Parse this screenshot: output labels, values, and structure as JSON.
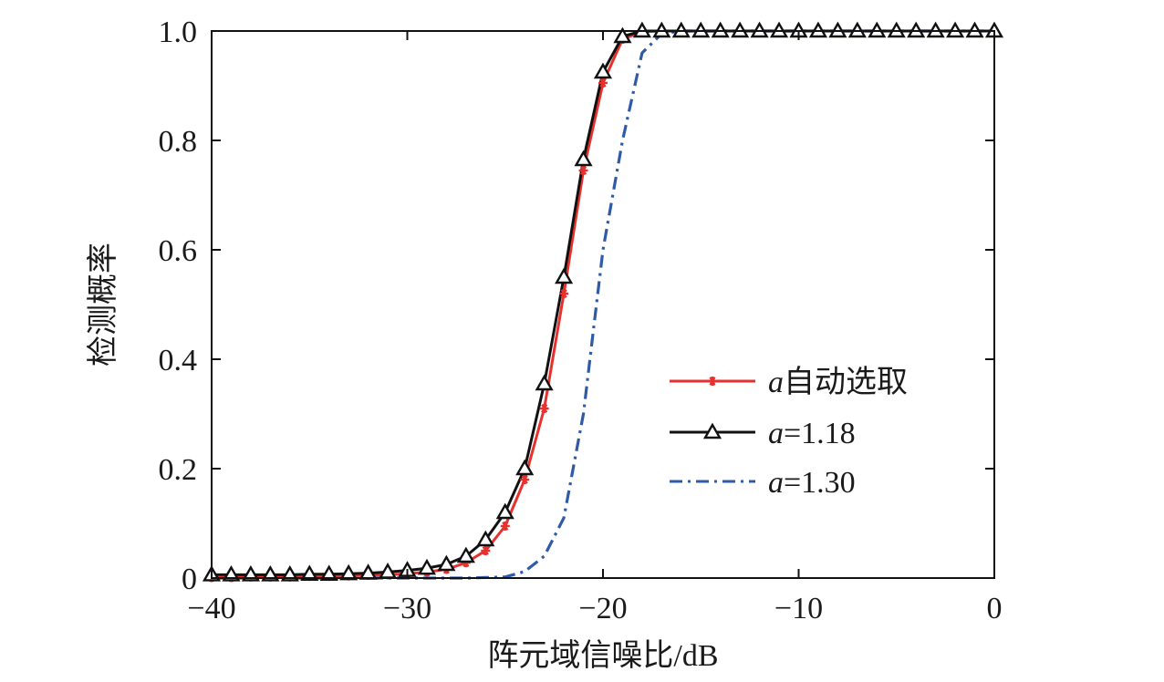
{
  "chart_data": {
    "type": "line",
    "xlabel": "阵元域信噪比/dB",
    "ylabel": "检测概率",
    "xlim": [
      -40,
      0
    ],
    "ylim": [
      0,
      1
    ],
    "xticks": [
      -40,
      -30,
      -20,
      -10,
      0
    ],
    "xtick_labels": [
      "−40",
      "−30",
      "−20",
      "−10",
      "0"
    ],
    "yticks": [
      0,
      0.2,
      0.4,
      0.6,
      0.8,
      1.0
    ],
    "ytick_labels": [
      "0",
      "0.2",
      "0.4",
      "0.6",
      "0.8",
      "1.0"
    ],
    "grid": false,
    "legend_position": "center-right",
    "series": [
      {
        "name_symbol": "a",
        "name_text": "自动选取",
        "color": "#e8312e",
        "line_style": "solid",
        "marker": "asterisk",
        "x": [
          -40,
          -39,
          -38,
          -37,
          -36,
          -35,
          -34,
          -33,
          -32,
          -31,
          -30,
          -29,
          -28,
          -27,
          -26,
          -25,
          -24,
          -23,
          -22,
          -21,
          -20,
          -19,
          -18,
          -17,
          -16,
          -15,
          -14,
          -13,
          -12,
          -11,
          -10,
          -9,
          -8,
          -7,
          -6,
          -5,
          -4,
          -3,
          -2,
          -1,
          0
        ],
        "y": [
          0.001,
          0.001,
          0.002,
          0.002,
          0.002,
          0.003,
          0.003,
          0.004,
          0.005,
          0.006,
          0.008,
          0.011,
          0.016,
          0.028,
          0.05,
          0.095,
          0.18,
          0.31,
          0.52,
          0.745,
          0.905,
          0.985,
          0.999,
          1,
          1,
          1,
          1,
          1,
          1,
          1,
          1,
          1,
          1,
          1,
          1,
          1,
          1,
          1,
          1,
          1,
          1
        ]
      },
      {
        "name_symbol": "a",
        "name_text": "=1.18",
        "color": "#111111",
        "line_style": "solid",
        "marker": "triangle",
        "x": [
          -40,
          -39,
          -38,
          -37,
          -36,
          -35,
          -34,
          -33,
          -32,
          -31,
          -30,
          -29,
          -28,
          -27,
          -26,
          -25,
          -24,
          -23,
          -22,
          -21,
          -20,
          -19,
          -18,
          -17,
          -16,
          -15,
          -14,
          -13,
          -12,
          -11,
          -10,
          -9,
          -8,
          -7,
          -6,
          -5,
          -4,
          -3,
          -2,
          -1,
          0
        ],
        "y": [
          0.006,
          0.006,
          0.006,
          0.006,
          0.006,
          0.007,
          0.007,
          0.008,
          0.009,
          0.011,
          0.014,
          0.018,
          0.025,
          0.04,
          0.07,
          0.12,
          0.2,
          0.355,
          0.55,
          0.765,
          0.925,
          0.99,
          1,
          1,
          1,
          1,
          1,
          1,
          1,
          1,
          1,
          1,
          1,
          1,
          1,
          1,
          1,
          1,
          1,
          1,
          1
        ]
      },
      {
        "name_symbol": "a",
        "name_text": "=1.30",
        "color": "#2f5aa8",
        "line_style": "dashdot",
        "marker": "none",
        "x": [
          -40,
          -39,
          -38,
          -37,
          -36,
          -35,
          -34,
          -33,
          -32,
          -31,
          -30,
          -29,
          -28,
          -27,
          -26,
          -25,
          -24,
          -23,
          -22,
          -21,
          -20,
          -19,
          -18,
          -17,
          -16,
          -15,
          -14,
          -13,
          -12,
          -11,
          -10,
          -9,
          -8,
          -7,
          -6,
          -5,
          -4,
          -3,
          -2,
          -1,
          0
        ],
        "y": [
          0,
          0,
          0,
          0,
          0,
          0,
          0,
          0,
          0,
          0,
          0,
          0,
          0,
          0,
          0.001,
          0.002,
          0.012,
          0.04,
          0.11,
          0.3,
          0.6,
          0.8,
          0.96,
          0.995,
          1,
          1,
          1,
          1,
          1,
          1,
          1,
          1,
          1,
          1,
          1,
          1,
          1,
          1,
          1,
          1,
          1
        ]
      }
    ]
  }
}
